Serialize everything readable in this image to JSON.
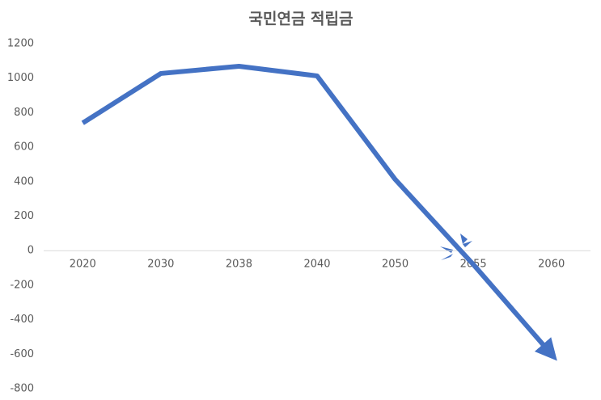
{
  "chart_data": {
    "type": "line",
    "title": "국민연금 적립금",
    "categories": [
      "2020",
      "2030",
      "2038",
      "2040",
      "2050",
      "2055",
      "2060"
    ],
    "values": [
      740,
      1027,
      1069,
      1013,
      413,
      -80,
      -600
    ],
    "color": "#4472c4",
    "ylim": [
      -800,
      1200
    ],
    "yticks": [
      -800,
      -600,
      -400,
      -200,
      0,
      200,
      400,
      600,
      800,
      1000,
      1200
    ],
    "grid": false
  }
}
